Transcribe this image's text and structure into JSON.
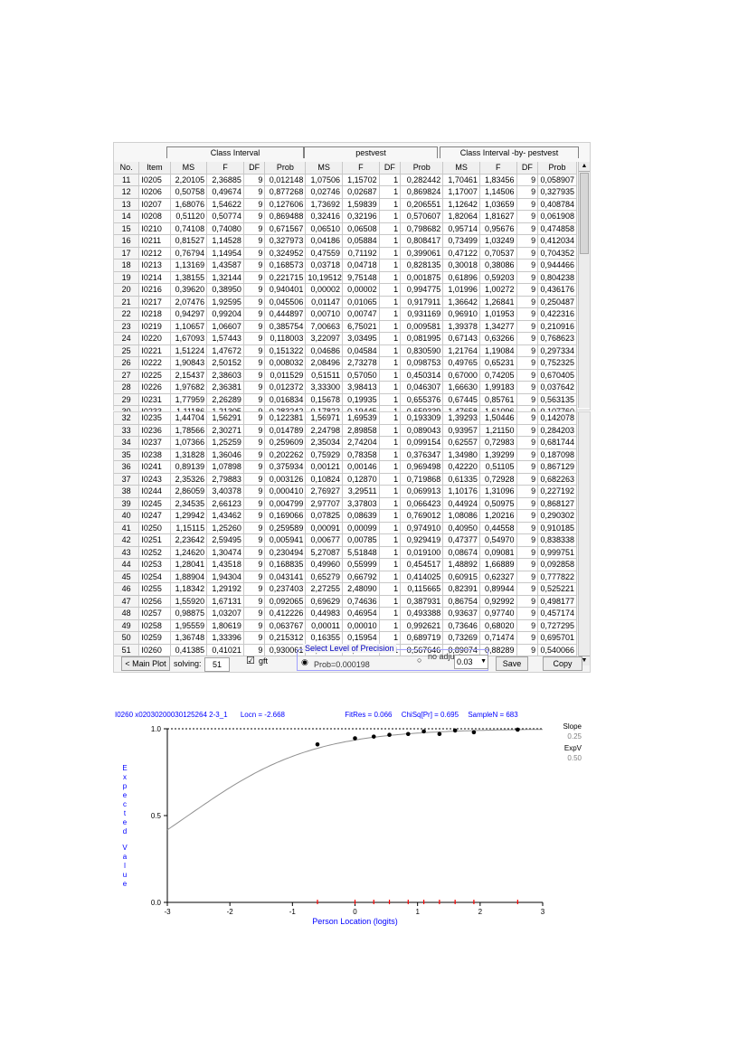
{
  "table_top": {
    "group_headers": [
      "Class Interval",
      "pestvest",
      "Class Interval -by- pestvest"
    ],
    "columns": [
      "No.",
      "Item",
      "MS",
      "F",
      "DF",
      "Prob",
      "MS",
      "F",
      "DF",
      "Prob",
      "MS",
      "F",
      "DF",
      "Prob"
    ],
    "rows": [
      [
        "11",
        "I0205",
        "2,20105",
        "2,36885",
        "9",
        "0,012148",
        "1,07506",
        "1,15702",
        "1",
        "0,282442",
        "1,70461",
        "1,83456",
        "9",
        "0,058907"
      ],
      [
        "12",
        "I0206",
        "0,50758",
        "0,49674",
        "9",
        "0,877268",
        "0,02746",
        "0,02687",
        "1",
        "0,869824",
        "1,17007",
        "1,14506",
        "9",
        "0,327935"
      ],
      [
        "13",
        "I0207",
        "1,68076",
        "1,54622",
        "9",
        "0,127606",
        "1,73692",
        "1,59839",
        "1",
        "0,206551",
        "1,12642",
        "1,03659",
        "9",
        "0,408784"
      ],
      [
        "14",
        "I0208",
        "0,51120",
        "0,50774",
        "9",
        "0,869488",
        "0,32416",
        "0,32196",
        "1",
        "0,570607",
        "1,82064",
        "1,81627",
        "9",
        "0,061908"
      ],
      [
        "15",
        "I0210",
        "0,74108",
        "0,74080",
        "9",
        "0,671567",
        "0,06510",
        "0,06508",
        "1",
        "0,798682",
        "0,95714",
        "0,95676",
        "9",
        "0,474858"
      ],
      [
        "16",
        "I0211",
        "0,81527",
        "1,14528",
        "9",
        "0,327973",
        "0,04186",
        "0,05884",
        "1",
        "0,808417",
        "0,73499",
        "1,03249",
        "9",
        "0,412034"
      ],
      [
        "17",
        "I0212",
        "0,76794",
        "1,14954",
        "9",
        "0,324952",
        "0,47559",
        "0,71192",
        "1",
        "0,399061",
        "0,47122",
        "0,70537",
        "9",
        "0,704352"
      ],
      [
        "18",
        "I0213",
        "1,13169",
        "1,43587",
        "9",
        "0,168573",
        "0,03718",
        "0,04718",
        "1",
        "0,828135",
        "0,30018",
        "0,38086",
        "9",
        "0,944466"
      ],
      [
        "19",
        "I0214",
        "1,38155",
        "1,32144",
        "9",
        "0,221715",
        "10,19512",
        "9,75148",
        "1",
        "0,001875",
        "0,61896",
        "0,59203",
        "9",
        "0,804238"
      ],
      [
        "20",
        "I0216",
        "0,39620",
        "0,38950",
        "9",
        "0,940401",
        "0,00002",
        "0,00002",
        "1",
        "0,994775",
        "1,01996",
        "1,00272",
        "9",
        "0,436176"
      ],
      [
        "21",
        "I0217",
        "2,07476",
        "1,92595",
        "9",
        "0,045506",
        "0,01147",
        "0,01065",
        "1",
        "0,917911",
        "1,36642",
        "1,26841",
        "9",
        "0,250487"
      ],
      [
        "22",
        "I0218",
        "0,94297",
        "0,99204",
        "9",
        "0,444897",
        "0,00710",
        "0,00747",
        "1",
        "0,931169",
        "0,96910",
        "1,01953",
        "9",
        "0,422316"
      ],
      [
        "23",
        "I0219",
        "1,10657",
        "1,06607",
        "9",
        "0,385754",
        "7,00663",
        "6,75021",
        "1",
        "0,009581",
        "1,39378",
        "1,34277",
        "9",
        "0,210916"
      ],
      [
        "24",
        "I0220",
        "1,67093",
        "1,57443",
        "9",
        "0,118003",
        "3,22097",
        "3,03495",
        "1",
        "0,081995",
        "0,67143",
        "0,63266",
        "9",
        "0,768623"
      ],
      [
        "25",
        "I0221",
        "1,51224",
        "1,47672",
        "9",
        "0,151322",
        "0,04686",
        "0,04584",
        "1",
        "0,830590",
        "1,21764",
        "1,19084",
        "9",
        "0,297334"
      ],
      [
        "26",
        "I0222",
        "1,90843",
        "2,50152",
        "9",
        "0,008032",
        "2,08496",
        "2,73278",
        "1",
        "0,098753",
        "0,49765",
        "0,65231",
        "9",
        "0,752325"
      ],
      [
        "27",
        "I0225",
        "2,15437",
        "2,38603",
        "9",
        "0,011529",
        "0,51511",
        "0,57050",
        "1",
        "0,450314",
        "0,67000",
        "0,74205",
        "9",
        "0,670405"
      ],
      [
        "28",
        "I0226",
        "1,97682",
        "2,36381",
        "9",
        "0,012372",
        "3,33300",
        "3,98413",
        "1",
        "0,046307",
        "1,66630",
        "1,99183",
        "9",
        "0,037642"
      ],
      [
        "29",
        "I0231",
        "1,77959",
        "2,26289",
        "9",
        "0,016834",
        "0,15678",
        "0,19935",
        "1",
        "0,655376",
        "0,67445",
        "0,85761",
        "9",
        "0,563135"
      ],
      [
        "30",
        "I0233",
        "1,11186",
        "1,21305",
        "9",
        "0,283242",
        "0,17823",
        "0,19445",
        "1",
        "0,659339",
        "1,47658",
        "1,61096",
        "9",
        "0,107760"
      ],
      [
        "31",
        "I0234",
        "1,73683",
        "2,21811",
        "9",
        "0,019273",
        "0,01179",
        "0,01505",
        "1",
        "0,902349",
        "0,64031",
        "0,81774",
        "9",
        "0,599918"
      ]
    ]
  },
  "table_bottom": {
    "rows": [
      [
        "32",
        "I0235",
        "1,44704",
        "1,56291",
        "9",
        "0,122381",
        "1,56971",
        "1,69539",
        "1",
        "0,193309",
        "1,39293",
        "1,50446",
        "9",
        "0,142078"
      ],
      [
        "33",
        "I0236",
        "1,78566",
        "2,30271",
        "9",
        "0,014789",
        "2,24798",
        "2,89858",
        "1",
        "0,089043",
        "0,93957",
        "1,21150",
        "9",
        "0,284203"
      ],
      [
        "34",
        "I0237",
        "1,07366",
        "1,25259",
        "9",
        "0,259609",
        "2,35034",
        "2,74204",
        "1",
        "0,099154",
        "0,62557",
        "0,72983",
        "9",
        "0,681744"
      ],
      [
        "35",
        "I0238",
        "1,31828",
        "1,36046",
        "9",
        "0,202262",
        "0,75929",
        "0,78358",
        "1",
        "0,376347",
        "1,34980",
        "1,39299",
        "9",
        "0,187098"
      ],
      [
        "36",
        "I0241",
        "0,89139",
        "1,07898",
        "9",
        "0,375934",
        "0,00121",
        "0,00146",
        "1",
        "0,969498",
        "0,42220",
        "0,51105",
        "9",
        "0,867129"
      ],
      [
        "37",
        "I0243",
        "2,35326",
        "2,79883",
        "9",
        "0,003126",
        "0,10824",
        "0,12870",
        "1",
        "0,719868",
        "0,61335",
        "0,72928",
        "9",
        "0,682263"
      ],
      [
        "38",
        "I0244",
        "2,86059",
        "3,40378",
        "9",
        "0,000410",
        "2,76927",
        "3,29511",
        "1",
        "0,069913",
        "1,10176",
        "1,31096",
        "9",
        "0,227192"
      ],
      [
        "39",
        "I0245",
        "2,34535",
        "2,66123",
        "9",
        "0,004799",
        "2,97707",
        "3,37803",
        "1",
        "0,066423",
        "0,44924",
        "0,50975",
        "9",
        "0,868127"
      ],
      [
        "40",
        "I0247",
        "1,29942",
        "1,43462",
        "9",
        "0,169066",
        "0,07825",
        "0,08639",
        "1",
        "0,769012",
        "1,08086",
        "1,20216",
        "9",
        "0,290302"
      ],
      [
        "41",
        "I0250",
        "1,15115",
        "1,25260",
        "9",
        "0,259589",
        "0,00091",
        "0,00099",
        "1",
        "0,974910",
        "0,40950",
        "0,44558",
        "9",
        "0,910185"
      ],
      [
        "42",
        "I0251",
        "2,23642",
        "2,59495",
        "9",
        "0,005941",
        "0,00677",
        "0,00785",
        "1",
        "0,929419",
        "0,47377",
        "0,54970",
        "9",
        "0,838338"
      ],
      [
        "43",
        "I0252",
        "1,24620",
        "1,30474",
        "9",
        "0,230494",
        "5,27087",
        "5,51848",
        "1",
        "0,019100",
        "0,08674",
        "0,09081",
        "9",
        "0,999751"
      ],
      [
        "44",
        "I0253",
        "1,28041",
        "1,43518",
        "9",
        "0,168835",
        "0,49960",
        "0,55999",
        "1",
        "0,454517",
        "1,48892",
        "1,66889",
        "9",
        "0,092858"
      ],
      [
        "45",
        "I0254",
        "1,88904",
        "1,94304",
        "9",
        "0,043141",
        "0,65279",
        "0,66792",
        "1",
        "0,414025",
        "0,60915",
        "0,62327",
        "9",
        "0,777822"
      ],
      [
        "46",
        "I0255",
        "1,18342",
        "1,29192",
        "9",
        "0,237403",
        "2,27255",
        "2,48090",
        "1",
        "0,115665",
        "0,82391",
        "0,89944",
        "9",
        "0,525221"
      ],
      [
        "47",
        "I0256",
        "1,55920",
        "1,67131",
        "9",
        "0,092065",
        "0,69629",
        "0,74636",
        "1",
        "0,387931",
        "0,86754",
        "0,92992",
        "9",
        "0,498177"
      ],
      [
        "48",
        "I0257",
        "0,98875",
        "1,03207",
        "9",
        "0,412226",
        "0,44983",
        "0,46954",
        "1",
        "0,493388",
        "0,93637",
        "0,97740",
        "9",
        "0,457174"
      ],
      [
        "49",
        "I0258",
        "1,95559",
        "1,80619",
        "9",
        "0,063767",
        "0,00011",
        "0,00010",
        "1",
        "0,992621",
        "0,73646",
        "0,68020",
        "9",
        "0,727295"
      ],
      [
        "50",
        "I0259",
        "1,36748",
        "1,33396",
        "9",
        "0,215312",
        "0,16355",
        "0,15954",
        "1",
        "0,689719",
        "0,73269",
        "0,71474",
        "9",
        "0,695701"
      ],
      [
        "51",
        "I0260",
        "0,41385",
        "0,41021",
        "9",
        "0,930061",
        "0,32979",
        "0,32688",
        "1",
        "0,567646",
        "0,89074",
        "0,88289",
        "9",
        "0,540066"
      ]
    ],
    "controls": {
      "main_plot": "< Main Plot",
      "solving_label": "solving:",
      "solving_value": "51",
      "gft_label": "gft",
      "precision_title": "Select Level of Precision",
      "bonferroni_fragment": "Bonferroni: 10-193",
      "prob_fragment": "Prob=0.000198",
      "no_adjust_fragment": "no adjust",
      "select_value": "0.03",
      "save": "Save",
      "copy": "Copy"
    }
  },
  "chart_header": {
    "item": "I0260",
    "code": "x02030200030125264 2-3_1",
    "locn": "Locn = -2.668",
    "fitres": "FitRes = 0.066",
    "chisq": "ChiSq[Pr] = 0.695",
    "samplen": "SampleN = 683"
  },
  "chart_data": {
    "type": "scatter",
    "xlabel": "Person Location (logits)",
    "ylabel": "Expected Value",
    "xlim": [
      -3,
      3
    ],
    "ylim": [
      0,
      1
    ],
    "x_ticks": [
      "-3",
      "-2",
      "-1",
      "0",
      "1",
      "2",
      "3"
    ],
    "y_ticks": [
      "0.0",
      "0.5",
      "1.0"
    ],
    "curve_location": -2.668,
    "points": [
      {
        "x": -0.6,
        "y": 0.91
      },
      {
        "x": 0.0,
        "y": 0.945
      },
      {
        "x": 0.3,
        "y": 0.955
      },
      {
        "x": 0.55,
        "y": 0.965
      },
      {
        "x": 0.85,
        "y": 0.97
      },
      {
        "x": 1.1,
        "y": 0.985
      },
      {
        "x": 1.35,
        "y": 0.97
      },
      {
        "x": 1.6,
        "y": 0.99
      },
      {
        "x": 1.9,
        "y": 0.98
      },
      {
        "x": 2.6,
        "y": 0.995
      }
    ],
    "rug": [
      -0.6,
      0.0,
      0.3,
      0.55,
      0.85,
      1.1,
      1.35,
      1.6,
      1.9,
      2.6
    ],
    "side_labels": {
      "slope": "Slope",
      "slope_value": "0.25",
      "expv": "ExpV",
      "expv_value": "0.50"
    },
    "colors": {
      "curve": "#909090",
      "points": "#000000",
      "axis_text": "#0000ff",
      "rug": "#ff0000"
    }
  }
}
